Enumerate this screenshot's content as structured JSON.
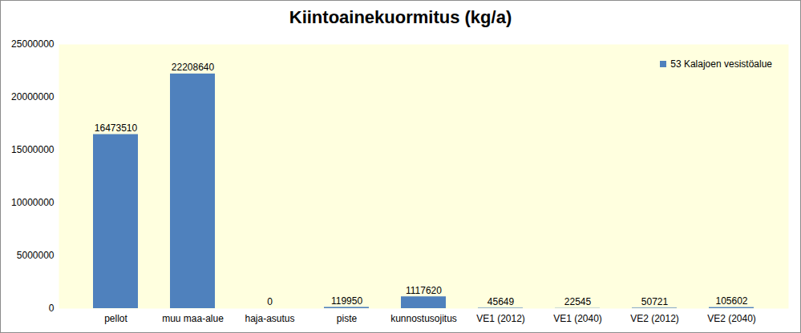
{
  "chart_data": {
    "type": "bar",
    "title": "Kiintoainekuormitus (kg/a)",
    "categories": [
      "pellot",
      "muu maa-alue",
      "haja-asutus",
      "piste",
      "kunnostusojitus",
      "VE1 (2012)",
      "VE1 (2040)",
      "VE2 (2012)",
      "VE2 (2040)"
    ],
    "series": [
      {
        "name": "53 Kalajoen vesistöalue",
        "color": "#4f81bd",
        "values": [
          16473510,
          22208640,
          0,
          119950,
          1117620,
          45649,
          22545,
          50721,
          105602
        ]
      }
    ],
    "ylim": [
      0,
      25000000
    ],
    "yticks": [
      0,
      5000000,
      10000000,
      15000000,
      20000000,
      25000000
    ],
    "grid": false,
    "legend": "top-right",
    "data_labels": true
  }
}
